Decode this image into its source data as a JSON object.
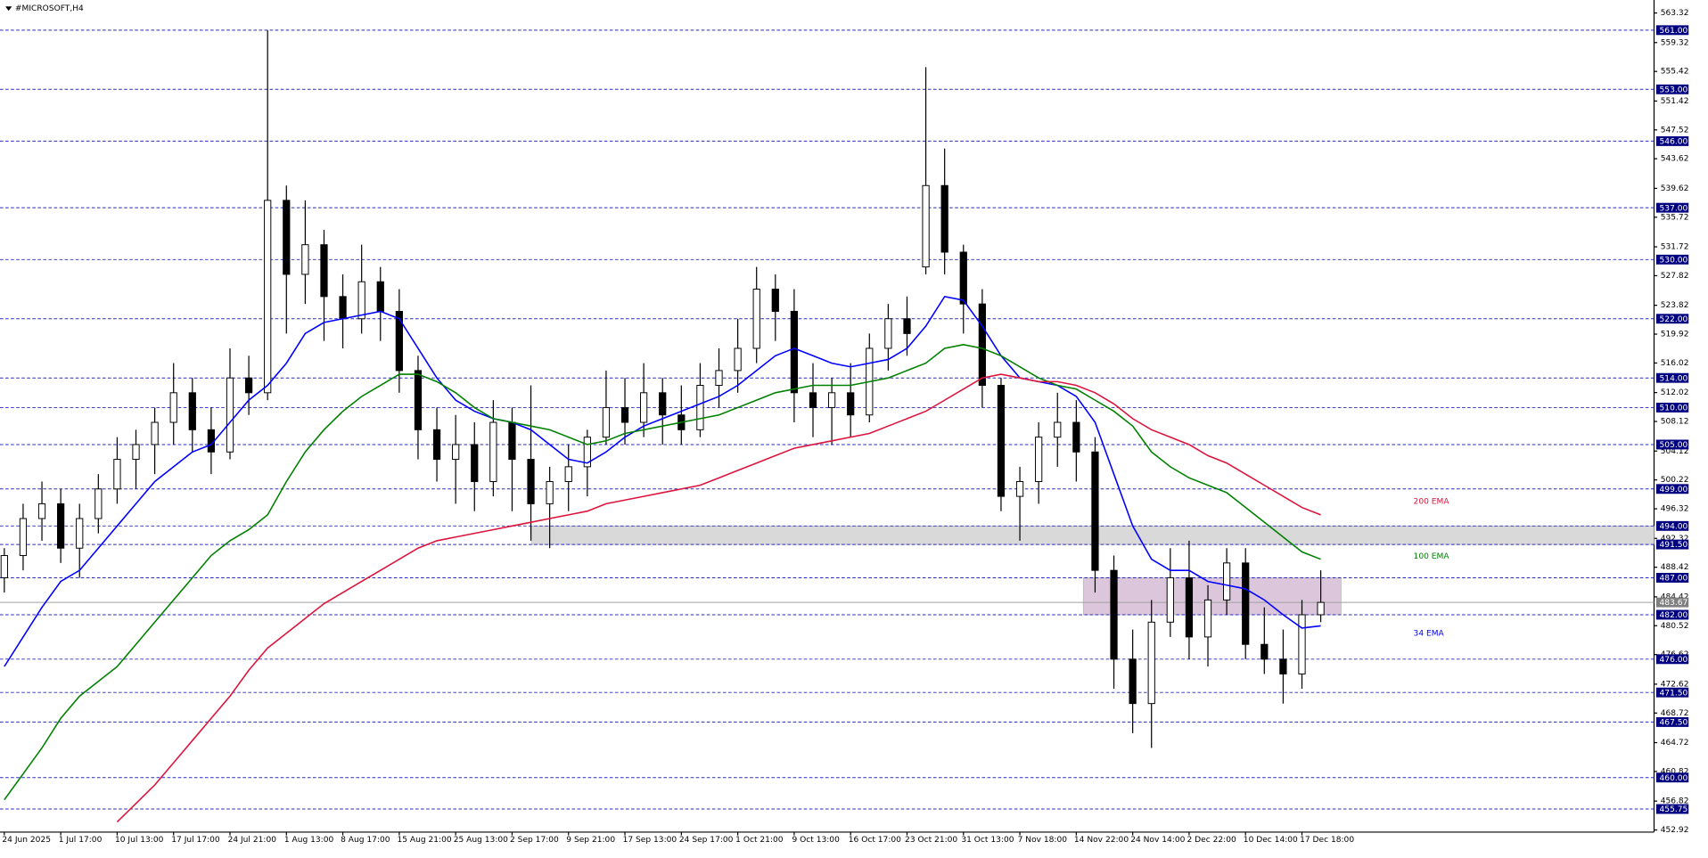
{
  "chart_data": {
    "type": "candlestick",
    "title": "#MICROSOFT,H4",
    "xtick_labels": [
      "24 Jun 2025",
      "1 Jul 17:00",
      "10 Jul 13:00",
      "17 Jul 17:00",
      "24 Jul 21:00",
      "1 Aug 13:00",
      "8 Aug 17:00",
      "15 Aug 21:00",
      "25 Aug 13:00",
      "2 Sep 17:00",
      "9 Sep 21:00",
      "17 Sep 13:00",
      "24 Sep 17:00",
      "1 Oct 21:00",
      "9 Oct 13:00",
      "16 Oct 17:00",
      "23 Oct 21:00",
      "31 Oct 13:00",
      "7 Nov 18:00",
      "14 Nov 22:00",
      "24 Nov 14:00",
      "2 Dec 22:00",
      "10 Dec 14:00",
      "17 Dec 18:00"
    ],
    "open": [
      487,
      490,
      495,
      497,
      491,
      495,
      499,
      503,
      505,
      508,
      512,
      507,
      504,
      514,
      512,
      538,
      528,
      532,
      525,
      522,
      527,
      523,
      515,
      507,
      503,
      505,
      500,
      508,
      503,
      497,
      500,
      502,
      506,
      510,
      508,
      512,
      509,
      507,
      513,
      515,
      518,
      526,
      523,
      512,
      510,
      512,
      509,
      518,
      522,
      529,
      540,
      531,
      524,
      513,
      498,
      500,
      506,
      508,
      504,
      488,
      476,
      470,
      481,
      487,
      479,
      484,
      489,
      478,
      476,
      474,
      482
    ],
    "high": [
      491,
      497,
      500,
      499,
      497,
      501,
      506,
      507,
      510,
      516,
      514,
      510,
      518,
      517,
      561,
      540,
      538,
      534,
      528,
      532,
      529,
      526,
      517,
      510,
      509,
      508,
      511,
      510,
      513,
      502,
      505,
      507,
      515,
      514,
      516,
      514,
      513,
      516,
      518,
      522,
      529,
      528,
      526,
      516,
      514,
      516,
      520,
      524,
      525,
      556,
      545,
      532,
      526,
      514,
      502,
      508,
      512,
      511,
      506,
      490,
      480,
      484,
      491,
      492,
      486,
      491,
      491,
      483,
      480,
      484,
      488
    ],
    "low": [
      485,
      488,
      492,
      489,
      487,
      493,
      497,
      499,
      501,
      505,
      504,
      501,
      503,
      509,
      511,
      520,
      524,
      519,
      518,
      520,
      519,
      512,
      503,
      500,
      497,
      496,
      498,
      496,
      492,
      491,
      496,
      498,
      505,
      505,
      506,
      505,
      505,
      506,
      510,
      512,
      516,
      519,
      508,
      506,
      505,
      506,
      508,
      515,
      517,
      528,
      528,
      520,
      510,
      496,
      492,
      497,
      502,
      500,
      485,
      472,
      466,
      464,
      479,
      476,
      475,
      482,
      476,
      474,
      470,
      472,
      481
    ],
    "close": [
      490,
      495,
      497,
      491,
      495,
      499,
      503,
      505,
      508,
      512,
      507,
      504,
      514,
      512,
      538,
      528,
      532,
      525,
      522,
      527,
      523,
      515,
      507,
      503,
      505,
      500,
      508,
      503,
      497,
      500,
      502,
      506,
      510,
      508,
      512,
      509,
      507,
      513,
      515,
      518,
      526,
      523,
      512,
      510,
      512,
      509,
      518,
      522,
      520,
      540,
      531,
      524,
      513,
      498,
      500,
      506,
      508,
      504,
      488,
      476,
      470,
      481,
      487,
      479,
      484,
      489,
      478,
      476,
      474,
      482,
      483.67
    ],
    "lines": [
      {
        "name": "34 EMA",
        "color": "#0000ff",
        "values": [
          475,
          479,
          483,
          486.5,
          488,
          491,
          494,
          497,
          500,
          502,
          504,
          505,
          508,
          511,
          513,
          516,
          520,
          521.5,
          522,
          522.5,
          523,
          522,
          518,
          514,
          511,
          509.5,
          508.5,
          508,
          507,
          505,
          503,
          502.5,
          504,
          506,
          507.5,
          508.5,
          509.5,
          510.5,
          511.5,
          513,
          515,
          517,
          518,
          517,
          516,
          515.5,
          516,
          516.5,
          518,
          521,
          525,
          524.5,
          521,
          517,
          514,
          513.5,
          513,
          511.5,
          508,
          501,
          494,
          489.5,
          488,
          488,
          486.5,
          486,
          485.5,
          484,
          482,
          480.2,
          480.5
        ]
      },
      {
        "name": "100 EMA",
        "color": "#008000",
        "values": [
          457,
          460.5,
          464,
          468,
          471,
          473,
          475,
          478,
          481,
          484,
          487,
          490,
          492,
          493.5,
          495.5,
          500,
          504,
          507,
          509.5,
          511.5,
          513,
          514.5,
          514.5,
          513.5,
          512,
          510,
          508.5,
          508,
          507.5,
          507,
          506,
          505,
          505.5,
          506.5,
          507,
          507.5,
          508,
          508.5,
          509,
          510,
          511,
          512,
          512.5,
          513,
          513,
          513,
          513.5,
          514,
          515,
          516,
          518,
          518.5,
          518,
          517,
          515.5,
          514,
          513,
          512.5,
          511,
          509.5,
          507.5,
          504,
          502,
          500.5,
          499.5,
          498.5,
          496.5,
          494.5,
          492.5,
          490.5,
          489.5
        ]
      },
      {
        "name": "200 EMA",
        "color": "#dc143c",
        "values": [
          null,
          null,
          null,
          null,
          null,
          null,
          454,
          456.5,
          459,
          462,
          465,
          468,
          471,
          474.5,
          477.5,
          479.5,
          481.5,
          483.5,
          485,
          486.5,
          488,
          489.5,
          491,
          492,
          492.5,
          493,
          493.5,
          494,
          494.5,
          495,
          495.5,
          496,
          497,
          497.5,
          498,
          498.5,
          499,
          499.5,
          500.5,
          501.5,
          502.5,
          503.5,
          504.5,
          505,
          505.5,
          506,
          506.5,
          507.5,
          508.5,
          509.5,
          511,
          512.5,
          514,
          514.5,
          514,
          513.5,
          513.5,
          513,
          512,
          510.5,
          508.5,
          507,
          506,
          505,
          503.5,
          502.5,
          501,
          499.5,
          498,
          496.5,
          495.5
        ]
      }
    ],
    "ylim": [
      452.63,
      564.49
    ],
    "yticks": [
      563.32,
      559.32,
      555.42,
      551.42,
      547.52,
      543.62,
      539.62,
      535.72,
      531.72,
      527.82,
      523.82,
      519.92,
      516.02,
      512.02,
      508.12,
      504.12,
      500.22,
      496.32,
      492.32,
      488.42,
      484.42,
      480.52,
      476.62,
      472.62,
      468.72,
      464.72,
      460.82,
      456.82,
      452.92
    ],
    "levels": [
      {
        "value": 561,
        "label": "561.00"
      },
      {
        "value": 553,
        "label": "553.00"
      },
      {
        "value": 546,
        "label": "546.00"
      },
      {
        "value": 537,
        "label": "537.00"
      },
      {
        "value": 530,
        "label": "530.00"
      },
      {
        "value": 522,
        "label": "522.00"
      },
      {
        "value": 514,
        "label": "514.00"
      },
      {
        "value": 510,
        "label": "510.00"
      },
      {
        "value": 505,
        "label": "505.00"
      },
      {
        "value": 499,
        "label": "499.00"
      },
      {
        "value": 494,
        "label": "494.00"
      },
      {
        "value": 491.5,
        "label": "491.50"
      },
      {
        "value": 487,
        "label": "487.00"
      },
      {
        "value": 482,
        "label": "482.00"
      },
      {
        "value": 476,
        "label": "476.00"
      },
      {
        "value": 471.5,
        "label": "471.50"
      },
      {
        "value": 467.5,
        "label": "467.50"
      },
      {
        "value": 460,
        "label": "460.00"
      },
      {
        "value": 455.75,
        "label": "455.75"
      }
    ],
    "current_price": 483.67,
    "zones": [
      {
        "top": 494,
        "bottom": 491.5,
        "color": "#d9d9d9"
      },
      {
        "top": 487,
        "bottom": 482,
        "color": "#dcc6dc"
      }
    ]
  }
}
